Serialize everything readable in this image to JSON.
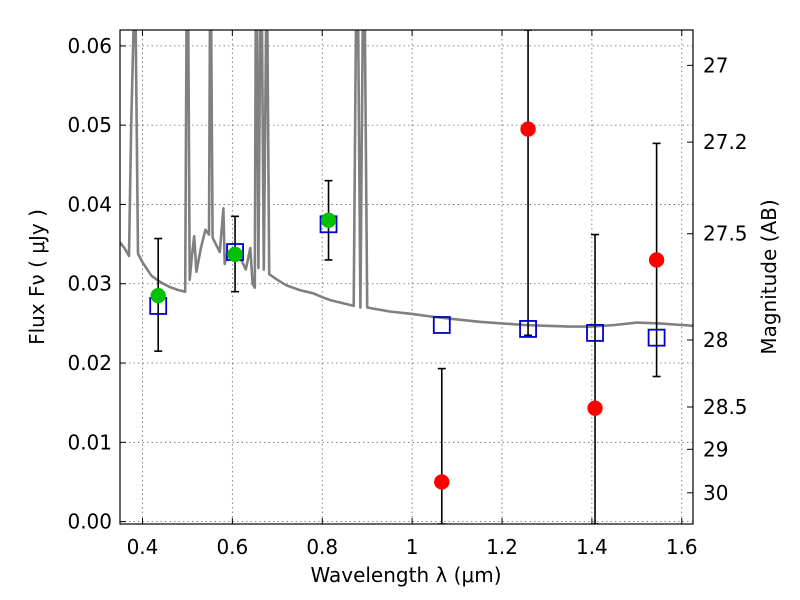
{
  "chart_data": {
    "type": "scatter",
    "xlabel": "Wavelength  λ (μm)",
    "ylabel": "Flux  Fν  ( μJy )",
    "y2label": "Magnitude (AB)",
    "xlim": [
      0.35,
      1.625
    ],
    "ylim": [
      -0.0003,
      0.062
    ],
    "grid": true,
    "x_ticks": [
      0.4,
      0.6,
      0.8,
      1.0,
      1.2,
      1.4,
      1.6
    ],
    "x_tick_labels": [
      "0.4",
      "0.6",
      "0.8",
      "1",
      "1.2",
      "1.4",
      "1.6"
    ],
    "y_ticks": [
      0.0,
      0.01,
      0.02,
      0.03,
      0.04,
      0.05,
      0.06
    ],
    "y_tick_labels": [
      "0.00",
      "0.01",
      "0.02",
      "0.03",
      "0.04",
      "0.05",
      "0.06"
    ],
    "y2_ticks": [
      {
        "label": "27",
        "mag": 27.0
      },
      {
        "label": "27.2",
        "mag": 27.2
      },
      {
        "label": "27.5",
        "mag": 27.5
      },
      {
        "label": "28",
        "mag": 28.0
      },
      {
        "label": "28.5",
        "mag": 28.5
      },
      {
        "label": "29",
        "mag": 29.0
      },
      {
        "label": "30",
        "mag": 30.0
      }
    ],
    "colors": {
      "model_sed": "#808080",
      "detection": "#00c000",
      "non_detection": "#ff0000",
      "model_flux": "#0000cc",
      "errorbar": "#000000"
    },
    "series": [
      {
        "kind": "line",
        "points": [
          [
            0.35,
            0.0352
          ],
          [
            0.36,
            0.0345
          ],
          [
            0.37,
            0.0335
          ],
          [
            0.375,
            0.05
          ],
          [
            0.38,
            0.062
          ],
          [
            0.385,
            0.062
          ],
          [
            0.39,
            0.0338
          ],
          [
            0.4,
            0.0327
          ],
          [
            0.42,
            0.031
          ],
          [
            0.44,
            0.0302
          ],
          [
            0.46,
            0.0296
          ],
          [
            0.48,
            0.0292
          ],
          [
            0.495,
            0.029
          ],
          [
            0.498,
            0.062
          ],
          [
            0.502,
            0.062
          ],
          [
            0.505,
            0.0305
          ],
          [
            0.51,
            0.0335
          ],
          [
            0.515,
            0.036
          ],
          [
            0.52,
            0.0315
          ],
          [
            0.53,
            0.0345
          ],
          [
            0.54,
            0.0368
          ],
          [
            0.548,
            0.0362
          ],
          [
            0.55,
            0.062
          ],
          [
            0.553,
            0.062
          ],
          [
            0.556,
            0.0358
          ],
          [
            0.565,
            0.0348
          ],
          [
            0.572,
            0.034
          ],
          [
            0.58,
            0.0395
          ],
          [
            0.583,
            0.0325
          ],
          [
            0.59,
            0.034
          ],
          [
            0.6,
            0.0335
          ],
          [
            0.62,
            0.033
          ],
          [
            0.63,
            0.0318
          ],
          [
            0.64,
            0.0345
          ],
          [
            0.645,
            0.03
          ],
          [
            0.65,
            0.0295
          ],
          [
            0.652,
            0.062
          ],
          [
            0.655,
            0.062
          ],
          [
            0.658,
            0.032
          ],
          [
            0.662,
            0.062
          ],
          [
            0.666,
            0.062
          ],
          [
            0.67,
            0.0318
          ],
          [
            0.675,
            0.062
          ],
          [
            0.678,
            0.062
          ],
          [
            0.682,
            0.0312
          ],
          [
            0.7,
            0.0305
          ],
          [
            0.72,
            0.0298
          ],
          [
            0.75,
            0.0292
          ],
          [
            0.78,
            0.0288
          ],
          [
            0.8,
            0.0283
          ],
          [
            0.82,
            0.0279
          ],
          [
            0.85,
            0.0275
          ],
          [
            0.87,
            0.0272
          ],
          [
            0.875,
            0.062
          ],
          [
            0.88,
            0.062
          ],
          [
            0.885,
            0.027
          ],
          [
            0.89,
            0.062
          ],
          [
            0.895,
            0.062
          ],
          [
            0.9,
            0.027
          ],
          [
            0.95,
            0.0265
          ],
          [
            1.0,
            0.0262
          ],
          [
            1.05,
            0.0258
          ],
          [
            1.1,
            0.0255
          ],
          [
            1.15,
            0.0252
          ],
          [
            1.2,
            0.025
          ],
          [
            1.25,
            0.0248
          ],
          [
            1.3,
            0.0247
          ],
          [
            1.35,
            0.0246
          ],
          [
            1.4,
            0.0246
          ],
          [
            1.45,
            0.0248
          ],
          [
            1.5,
            0.0251
          ],
          [
            1.55,
            0.025
          ],
          [
            1.6,
            0.0248
          ],
          [
            1.625,
            0.0247
          ]
        ]
      },
      {
        "kind": "errorbar",
        "points": [
          {
            "x": 0.435,
            "y": 0.0285,
            "lo": 0.0215,
            "hi": 0.0357
          },
          {
            "x": 0.606,
            "y": 0.0337,
            "lo": 0.029,
            "hi": 0.0385
          },
          {
            "x": 0.814,
            "y": 0.038,
            "lo": 0.033,
            "hi": 0.043
          },
          {
            "x": 1.066,
            "y": 0.005,
            "lo": -0.0003,
            "hi": 0.0193
          },
          {
            "x": 1.258,
            "y": 0.0495,
            "lo": 0.0235,
            "hi": 0.062
          },
          {
            "x": 1.407,
            "y": 0.0143,
            "lo": -0.0003,
            "hi": 0.0362
          },
          {
            "x": 1.544,
            "y": 0.033,
            "lo": 0.0183,
            "hi": 0.0477
          }
        ]
      },
      {
        "kind": "square",
        "color": "model_flux",
        "points": [
          [
            0.435,
            0.0272
          ],
          [
            0.606,
            0.034
          ],
          [
            0.814,
            0.0375
          ],
          [
            1.066,
            0.0248
          ],
          [
            1.258,
            0.0243
          ],
          [
            1.407,
            0.0238
          ],
          [
            1.544,
            0.0232
          ]
        ]
      },
      {
        "kind": "circle",
        "color": "detection",
        "points": [
          [
            0.435,
            0.0285
          ],
          [
            0.606,
            0.0337
          ],
          [
            0.814,
            0.038
          ]
        ]
      },
      {
        "kind": "circle",
        "color": "non_detection",
        "points": [
          [
            1.066,
            0.005
          ],
          [
            1.258,
            0.0495
          ],
          [
            1.407,
            0.0143
          ],
          [
            1.544,
            0.033
          ]
        ]
      }
    ]
  }
}
